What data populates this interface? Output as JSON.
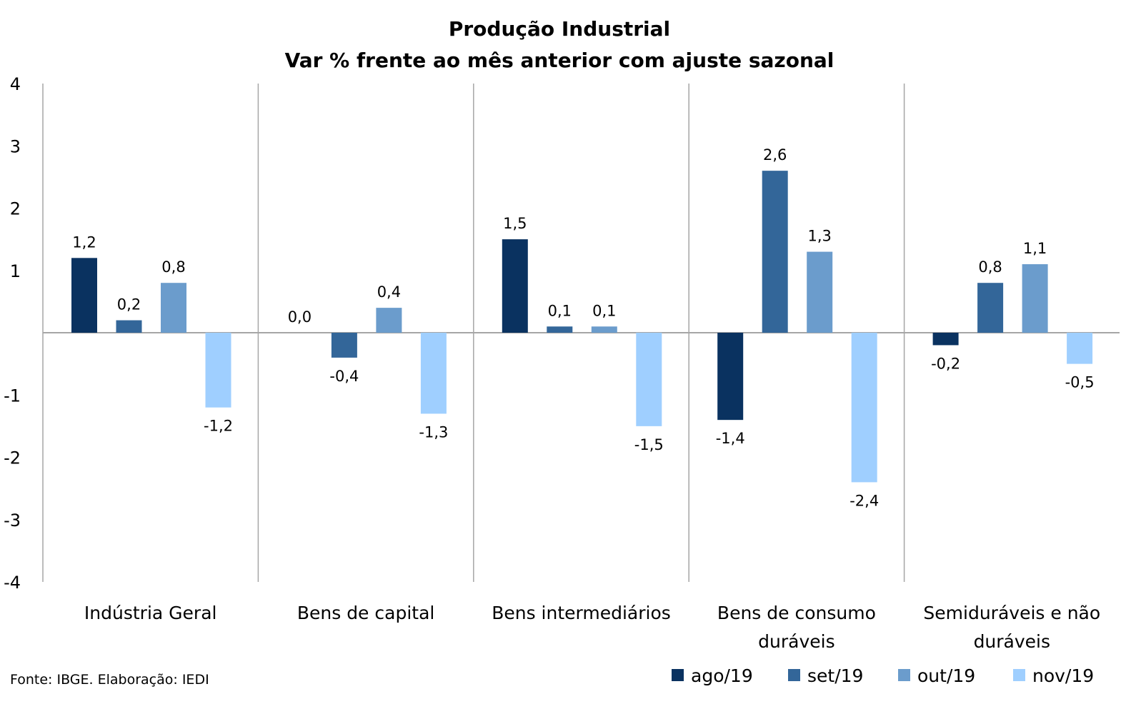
{
  "chart_data": {
    "type": "bar",
    "title": "Produção Industrial",
    "subtitle": "Var % frente ao mês anterior com ajuste sazonal",
    "categories": [
      [
        "Indústria Geral"
      ],
      [
        "Bens de capital"
      ],
      [
        "Bens intermediários"
      ],
      [
        "Bens de consumo",
        "duráveis"
      ],
      [
        "Semiduráveis e não",
        "duráveis"
      ]
    ],
    "series": [
      {
        "name": "ago/19",
        "color": "#0a3260",
        "values": [
          1.2,
          0.0,
          1.5,
          -1.4,
          -0.2
        ],
        "labels": [
          "1,2",
          "0,0",
          "1,5",
          "-1,4",
          "-0,2"
        ]
      },
      {
        "name": "set/19",
        "color": "#336699",
        "values": [
          0.2,
          -0.4,
          0.1,
          2.6,
          0.8
        ],
        "labels": [
          "0,2",
          "-0,4",
          "0,1",
          "2,6",
          "0,8"
        ]
      },
      {
        "name": "out/19",
        "color": "#6b9ccc",
        "values": [
          0.8,
          0.4,
          0.1,
          1.3,
          1.1
        ],
        "labels": [
          "0,8",
          "0,4",
          "0,1",
          "1,3",
          "1,1"
        ]
      },
      {
        "name": "nov/19",
        "color": "#9fcfff",
        "values": [
          -1.2,
          -1.3,
          -1.5,
          -2.4,
          -0.5
        ],
        "labels": [
          "-1,2",
          "-1,3",
          "-1,5",
          "-2,4",
          "-0,5"
        ]
      }
    ],
    "ylim": [
      -4,
      4
    ],
    "yticks": [
      "4",
      "3",
      "2",
      "1",
      "",
      "-1",
      "-2",
      "-3",
      "-4"
    ],
    "grid": false,
    "legend_position": "bottom-right"
  },
  "source": "Fonte: IBGE. Elaboração: IEDI"
}
